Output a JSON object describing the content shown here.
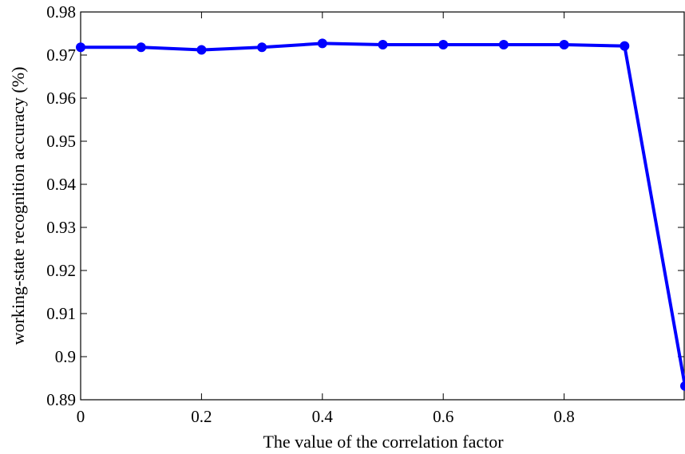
{
  "chart_data": {
    "type": "line",
    "xlabel": "The value of the correlation factor",
    "ylabel": "working-state recognition accuracy (%)",
    "xlim": [
      0,
      1
    ],
    "ylim": [
      0.89,
      0.98
    ],
    "x_ticks": [
      0,
      0.2,
      0.4,
      0.6,
      0.8
    ],
    "x_tick_labels": [
      "0",
      "0.2",
      "0.4",
      "0.6",
      "0.8"
    ],
    "y_ticks": [
      0.89,
      0.9,
      0.91,
      0.92,
      0.93,
      0.94,
      0.95,
      0.96,
      0.97,
      0.98
    ],
    "y_tick_labels": [
      "0.89",
      "0.9",
      "0.91",
      "0.92",
      "0.93",
      "0.94",
      "0.95",
      "0.96",
      "0.97",
      "0.98"
    ],
    "grid": false,
    "series": [
      {
        "color": "#0000ff",
        "marker": "circle",
        "x": [
          0,
          0.1,
          0.2,
          0.3,
          0.4,
          0.5,
          0.6,
          0.7,
          0.8,
          0.9,
          1.0
        ],
        "y": [
          0.9718,
          0.9718,
          0.9712,
          0.9718,
          0.9727,
          0.9724,
          0.9724,
          0.9724,
          0.9724,
          0.9721,
          0.8932
        ]
      }
    ]
  }
}
